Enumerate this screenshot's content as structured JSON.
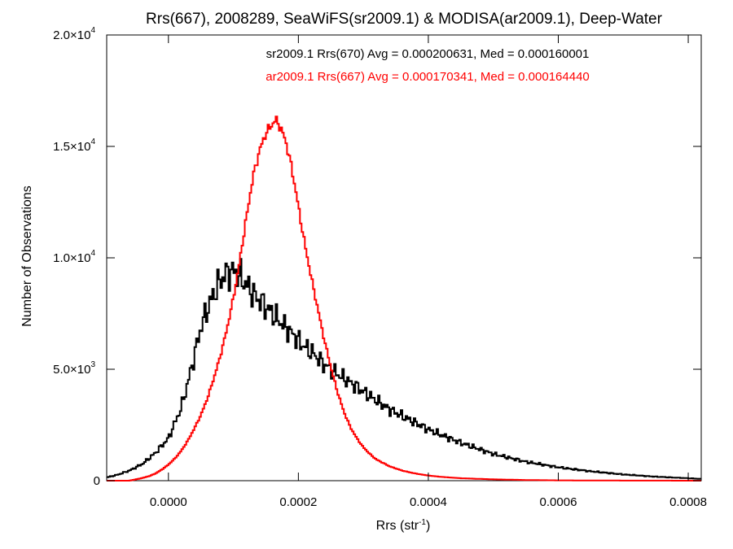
{
  "chart_data": {
    "type": "line",
    "step": true,
    "title": "Rrs(667), 2008289, SeaWiFS(sr2009.1) & MODISA(ar2009.1), Deep-Water",
    "xlabel": "Rrs (str",
    "xlabel_sup": "-1",
    "xlabel_close": ")",
    "ylabel": "Number of Observations",
    "xlim": [
      -9.5e-05,
      0.00082
    ],
    "ylim": [
      0,
      20000
    ],
    "x_ticks": [
      0.0,
      0.0002,
      0.0004,
      0.0006,
      0.0008
    ],
    "x_tick_labels": [
      "0.0000",
      "0.0002",
      "0.0004",
      "0.0006",
      "0.0008"
    ],
    "y_ticks": [
      {
        "value": 0,
        "mant": "0",
        "exp": ""
      },
      {
        "value": 5000,
        "mant": "5.0×10",
        "exp": "3"
      },
      {
        "value": 10000,
        "mant": "1.0×10",
        "exp": "4"
      },
      {
        "value": 15000,
        "mant": "1.5×10",
        "exp": "4"
      },
      {
        "value": 20000,
        "mant": "2.0×10",
        "exp": "4"
      }
    ],
    "grid": false,
    "legend_position": "top-center",
    "series": [
      {
        "name": "sr2009.1 Rrs(670) Avg = 0.000200631, Med = 0.000160001",
        "color": "#000000",
        "x": [
          -9.5e-05,
          -8e-05,
          -6e-05,
          -4e-05,
          -2e-05,
          0.0,
          1e-05,
          2e-05,
          3e-05,
          4e-05,
          5e-05,
          6e-05,
          7e-05,
          8e-05,
          9e-05,
          0.0001,
          0.00011,
          0.00012,
          0.00013,
          0.00014,
          0.00015,
          0.00016,
          0.00017,
          0.00018,
          0.00019,
          0.0002,
          0.00021,
          0.00022,
          0.00023,
          0.00024,
          0.00025,
          0.00026,
          0.00027,
          0.00028,
          0.0003,
          0.00032,
          0.00034,
          0.00036,
          0.00038,
          0.0004,
          0.00042,
          0.00045,
          0.00048,
          0.0005,
          0.00055,
          0.0006,
          0.00065,
          0.0007,
          0.00075,
          0.0008,
          0.00082
        ],
        "y": [
          150,
          250,
          450,
          750,
          1250,
          1900,
          2600,
          3300,
          4400,
          5600,
          6900,
          7700,
          8400,
          9000,
          9300,
          9400,
          9200,
          8800,
          8400,
          8100,
          7800,
          7500,
          7200,
          6900,
          6600,
          6300,
          6000,
          5800,
          5500,
          5200,
          5000,
          4800,
          4600,
          4400,
          4000,
          3600,
          3200,
          2900,
          2600,
          2300,
          2050,
          1700,
          1400,
          1200,
          850,
          600,
          420,
          280,
          180,
          110,
          80
        ]
      },
      {
        "name": "ar2009.1 Rrs(667) Avg = 0.000170341, Med = 0.000164440",
        "color": "#ff0000",
        "x": [
          -9.5e-05,
          -6e-05,
          -5e-05,
          -4e-05,
          -3e-05,
          -2e-05,
          -1e-05,
          0.0,
          1e-05,
          2e-05,
          3e-05,
          4e-05,
          5e-05,
          6e-05,
          7e-05,
          8e-05,
          9e-05,
          0.0001,
          0.00011,
          0.00012,
          0.00013,
          0.00014,
          0.00015,
          0.00016,
          0.000165,
          0.00017,
          0.00018,
          0.00019,
          0.0002,
          0.00021,
          0.00022,
          0.00023,
          0.00024,
          0.00025,
          0.00026,
          0.00027,
          0.00028,
          0.00029,
          0.0003,
          0.00031,
          0.00032,
          0.00034,
          0.00036,
          0.00038,
          0.0004,
          0.00042,
          0.00045,
          0.0005,
          0.00055,
          0.0006,
          0.0007,
          0.00082
        ],
        "y": [
          0,
          0,
          60,
          120,
          200,
          320,
          500,
          720,
          1000,
          1350,
          1800,
          2350,
          2950,
          3700,
          4600,
          5600,
          6800,
          8200,
          9900,
          11800,
          13600,
          14800,
          15600,
          16000,
          16200,
          16000,
          15300,
          14000,
          12300,
          10600,
          9100,
          7700,
          6300,
          5100,
          4000,
          3100,
          2400,
          1900,
          1500,
          1200,
          950,
          650,
          450,
          320,
          230,
          170,
          110,
          60,
          30,
          15,
          5,
          0
        ]
      }
    ]
  }
}
